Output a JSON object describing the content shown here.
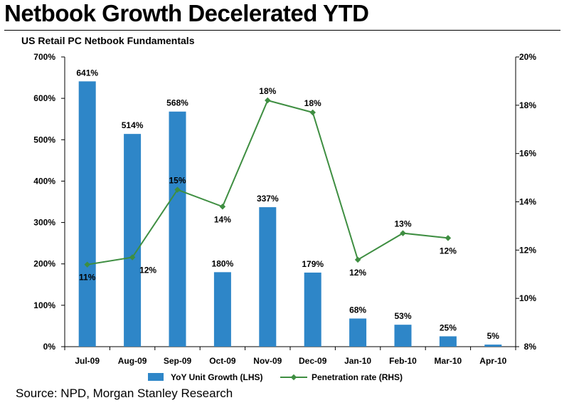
{
  "page": {
    "title": "Netbook Growth Decelerated YTD",
    "source": "Source: NPD, Morgan Stanley Research"
  },
  "colors": {
    "bar": "#2E86C8",
    "line": "#3E8E41",
    "axis": "#000000"
  },
  "chart_data": {
    "type": "bar",
    "title": "US Retail PC Netbook Fundamentals",
    "categories": [
      "Jul-09",
      "Aug-09",
      "Sep-09",
      "Oct-09",
      "Nov-09",
      "Dec-09",
      "Jan-10",
      "Feb-10",
      "Mar-10",
      "Apr-10"
    ],
    "series": [
      {
        "name": "YoY Unit Growth (LHS)",
        "type": "bar",
        "axis": "left",
        "values": [
          641,
          514,
          568,
          180,
          337,
          179,
          68,
          53,
          25,
          5
        ],
        "labels": [
          "641%",
          "514%",
          "568%",
          "180%",
          "337%",
          "179%",
          "68%",
          "53%",
          "25%",
          "5%"
        ]
      },
      {
        "name": "Penetration rate (RHS)",
        "type": "line",
        "axis": "right",
        "values": [
          11.4,
          11.7,
          14.5,
          13.8,
          18.2,
          17.7,
          11.6,
          12.7,
          12.5,
          null
        ],
        "labels": [
          "11%",
          "12%",
          "15%",
          "14%",
          "18%",
          "18%",
          "12%",
          "13%",
          "12%",
          null
        ]
      }
    ],
    "y_left": {
      "min": 0,
      "max": 700,
      "step": 100,
      "ticks": [
        "0%",
        "100%",
        "200%",
        "300%",
        "400%",
        "500%",
        "600%",
        "700%"
      ]
    },
    "y_right": {
      "min": 8,
      "max": 20,
      "step": 2,
      "ticks": [
        "8%",
        "10%",
        "12%",
        "14%",
        "16%",
        "18%",
        "20%"
      ]
    },
    "grid": false,
    "legend_position": "bottom"
  }
}
